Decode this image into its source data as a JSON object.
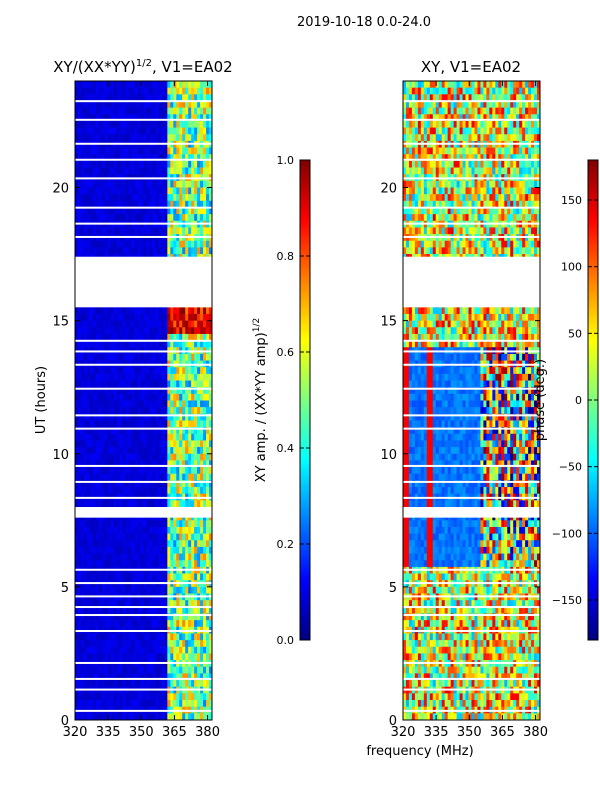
{
  "suptitle": "2019-10-18 0.0-24.0",
  "colors": {
    "jet": [
      "#00007f",
      "#0000ff",
      "#007fff",
      "#00ffff",
      "#7fff7f",
      "#ffff00",
      "#ff7f00",
      "#ff0000",
      "#7f0000"
    ]
  },
  "chart_data": [
    {
      "type": "heatmap",
      "title_main": "XY/(XX*YY)",
      "title_exp": "1/2",
      "title_rest": ", V1=EA02",
      "xlabel": "",
      "ylabel": "UT (hours)",
      "xlim": [
        320,
        382
      ],
      "ylim": [
        0,
        24
      ],
      "xticks": [
        "320",
        "335",
        "350",
        "365",
        "380"
      ],
      "xtick_values": [
        320,
        335,
        350,
        365,
        380
      ],
      "yticks": [
        "0",
        "5",
        "10",
        "15",
        "20"
      ],
      "ytick_values": [
        0,
        5,
        10,
        15,
        20
      ],
      "data_gaps_hours": [
        [
          15.5,
          17.4
        ],
        [
          7.6,
          8.0
        ]
      ],
      "colorbar": {
        "label_main": "XY amp. / (XX*YY amp)",
        "label_exp": "1/2",
        "range": [
          0,
          1
        ],
        "ticks": [
          "0.0",
          "0.2",
          "0.4",
          "0.6",
          "0.8",
          "1.0"
        ],
        "tick_values": [
          0,
          0.2,
          0.4,
          0.6,
          0.8,
          1.0
        ]
      }
    },
    {
      "type": "heatmap",
      "title": "XY, V1=EA02",
      "xlabel": "frequency (MHz)",
      "ylabel": "",
      "xlim": [
        320,
        382
      ],
      "ylim": [
        0,
        24
      ],
      "xticks": [
        "320",
        "335",
        "350",
        "365",
        "380"
      ],
      "xtick_values": [
        320,
        335,
        350,
        365,
        380
      ],
      "yticks": [
        "0",
        "5",
        "10",
        "15",
        "20"
      ],
      "ytick_values": [
        0,
        5,
        10,
        15,
        20
      ],
      "data_gaps_hours": [
        [
          15.5,
          17.4
        ],
        [
          7.6,
          8.0
        ]
      ],
      "colorbar": {
        "label": "phase (deg.)",
        "range": [
          -180,
          180
        ],
        "ticks": [
          "150",
          "100",
          "50",
          "0",
          "−50",
          "−100",
          "−150"
        ],
        "tick_values": [
          150,
          100,
          50,
          0,
          -50,
          -100,
          -150
        ]
      }
    }
  ]
}
